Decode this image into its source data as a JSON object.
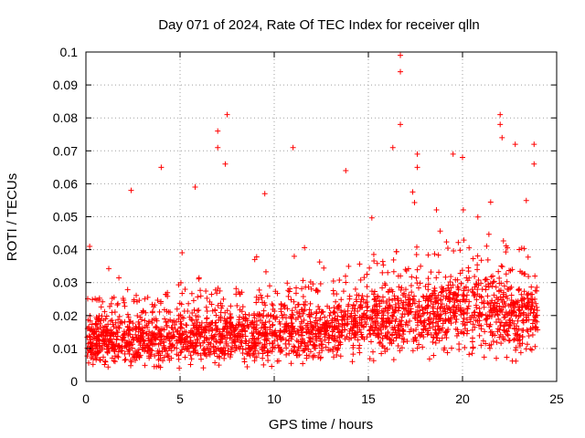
{
  "chart_data": {
    "type": "scatter",
    "title": "Day 071 of 2024, Rate Of TEC Index for receiver qlln",
    "xlabel": "GPS time / hours",
    "ylabel": "ROTI / TECUs",
    "xlim": [
      0,
      25
    ],
    "ylim": [
      0,
      0.1
    ],
    "xticks": [
      0,
      5,
      10,
      15,
      20,
      25
    ],
    "yticks": [
      0,
      0.01,
      0.02,
      0.03,
      0.04,
      0.05,
      0.06,
      0.07,
      0.08,
      0.09,
      0.1
    ],
    "xtick_labels": [
      "0",
      "5",
      "10",
      "15",
      "20",
      "25"
    ],
    "ytick_labels": [
      "0",
      "0.01",
      "0.02",
      "0.03",
      "0.04",
      "0.05",
      "0.06",
      "0.07",
      "0.08",
      "0.09",
      "0.1"
    ],
    "grid": true,
    "marker": "+",
    "color": "#ff0000",
    "series": [
      {
        "name": "ROTI",
        "x_range": [
          0,
          24
        ],
        "point_count": 2600,
        "baseline_profile": [
          {
            "x": 0,
            "median": 0.012
          },
          {
            "x": 5,
            "median": 0.013
          },
          {
            "x": 10,
            "median": 0.014
          },
          {
            "x": 13,
            "median": 0.015
          },
          {
            "x": 15,
            "median": 0.018
          },
          {
            "x": 20,
            "median": 0.021
          },
          {
            "x": 24,
            "median": 0.019
          }
        ],
        "typical_min": 0.004,
        "notable_points": [
          {
            "x": 0.2,
            "y": 0.041
          },
          {
            "x": 2.4,
            "y": 0.058
          },
          {
            "x": 4.0,
            "y": 0.065
          },
          {
            "x": 5.8,
            "y": 0.059
          },
          {
            "x": 7.0,
            "y": 0.076
          },
          {
            "x": 7.0,
            "y": 0.071
          },
          {
            "x": 7.5,
            "y": 0.081
          },
          {
            "x": 7.4,
            "y": 0.066
          },
          {
            "x": 9.5,
            "y": 0.057
          },
          {
            "x": 11.0,
            "y": 0.071
          },
          {
            "x": 13.8,
            "y": 0.064
          },
          {
            "x": 16.7,
            "y": 0.099
          },
          {
            "x": 16.7,
            "y": 0.094
          },
          {
            "x": 16.7,
            "y": 0.078
          },
          {
            "x": 16.3,
            "y": 0.071
          },
          {
            "x": 17.6,
            "y": 0.069
          },
          {
            "x": 17.6,
            "y": 0.065
          },
          {
            "x": 19.5,
            "y": 0.069
          },
          {
            "x": 20.0,
            "y": 0.068
          },
          {
            "x": 22.0,
            "y": 0.081
          },
          {
            "x": 22.0,
            "y": 0.078
          },
          {
            "x": 22.1,
            "y": 0.074
          },
          {
            "x": 22.8,
            "y": 0.072
          },
          {
            "x": 23.8,
            "y": 0.072
          },
          {
            "x": 23.8,
            "y": 0.066
          }
        ]
      }
    ]
  }
}
